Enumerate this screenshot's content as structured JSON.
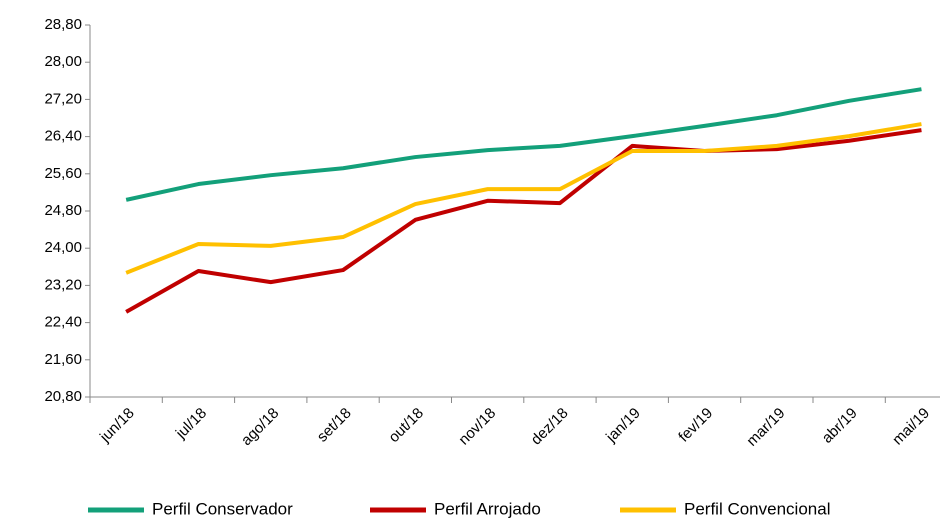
{
  "chart_data": {
    "type": "line",
    "categories": [
      "jun/18",
      "jul/18",
      "ago/18",
      "set/18",
      "out/18",
      "nov/18",
      "dez/18",
      "jan/19",
      "fev/19",
      "mar/19",
      "abr/19",
      "mai/19"
    ],
    "series": [
      {
        "name": "Perfil Conservador",
        "color": "#13a07a",
        "values": [
          25.04,
          25.38,
          25.57,
          25.72,
          25.96,
          26.11,
          26.2,
          26.41,
          26.63,
          26.86,
          27.17,
          27.42
        ]
      },
      {
        "name": "Perfil Arrojado",
        "color": "#c00000",
        "values": [
          22.63,
          23.51,
          23.27,
          23.53,
          24.61,
          25.02,
          24.97,
          26.2,
          26.09,
          26.13,
          26.31,
          26.54
        ]
      },
      {
        "name": "Perfil Convencional",
        "color": "#ffc000",
        "values": [
          23.47,
          24.09,
          24.05,
          24.24,
          24.95,
          25.27,
          25.27,
          26.09,
          26.09,
          26.2,
          26.41,
          26.67
        ]
      }
    ],
    "ylim": [
      20.8,
      28.8
    ],
    "yticks": [
      {
        "value": 20.8,
        "label": "20,80"
      },
      {
        "value": 21.6,
        "label": "21,60"
      },
      {
        "value": 22.4,
        "label": "22,40"
      },
      {
        "value": 23.2,
        "label": "23,20"
      },
      {
        "value": 24.0,
        "label": "24,00"
      },
      {
        "value": 24.8,
        "label": "24,80"
      },
      {
        "value": 25.6,
        "label": "25,60"
      },
      {
        "value": 26.4,
        "label": "26,40"
      },
      {
        "value": 27.2,
        "label": "27,20"
      },
      {
        "value": 28.0,
        "label": "28,00"
      },
      {
        "value": 28.8,
        "label": "28,80"
      }
    ],
    "legend": "bottom"
  }
}
